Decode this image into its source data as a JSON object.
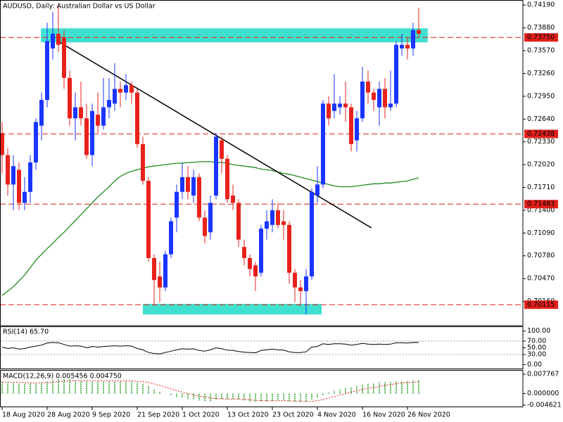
{
  "chart_data": [
    {
      "type": "candlestick",
      "title": "AUDUSD, Daily:  Australian Dollar vs US Dollar",
      "open": [
        0.7245,
        0.7215,
        0.7175,
        0.7195,
        0.715,
        0.7165,
        0.7205,
        0.7255,
        0.729,
        0.736,
        0.738,
        0.7375,
        0.732,
        0.7265,
        0.728,
        0.7265,
        0.7215,
        0.727,
        0.7255,
        0.728,
        0.7285,
        0.7305,
        0.73,
        0.731,
        0.73,
        0.723,
        0.718,
        0.7075,
        0.705,
        0.7035,
        0.708,
        0.713,
        0.7165,
        0.7185,
        0.716,
        0.7185,
        0.713,
        0.711,
        0.716,
        0.7235,
        0.721,
        0.716,
        0.715,
        0.709,
        0.7075,
        0.7065,
        0.7055,
        0.7115,
        0.712,
        0.714,
        0.7125,
        0.712,
        0.7055,
        0.7035,
        0.703,
        0.705,
        0.716,
        0.7175,
        0.7285,
        0.7275,
        0.728,
        0.7285,
        0.728,
        0.7235,
        0.7265,
        0.7315,
        0.73,
        0.728,
        0.7305,
        0.728,
        0.7285,
        0.736,
        0.7365,
        0.736,
        0.7385
      ],
      "high": [
        0.726,
        0.7225,
        0.7215,
        0.7205,
        0.7185,
        0.7215,
        0.7265,
        0.73,
        0.7395,
        0.741,
        0.742,
        0.7385,
        0.733,
        0.73,
        0.7315,
        0.7285,
        0.7285,
        0.73,
        0.732,
        0.732,
        0.734,
        0.7315,
        0.7325,
        0.7315,
        0.7305,
        0.724,
        0.7185,
        0.708,
        0.707,
        0.7085,
        0.713,
        0.7175,
        0.7205,
        0.72,
        0.7195,
        0.719,
        0.714,
        0.716,
        0.7245,
        0.724,
        0.7215,
        0.7175,
        0.7155,
        0.71,
        0.708,
        0.707,
        0.712,
        0.714,
        0.7155,
        0.715,
        0.714,
        0.7125,
        0.706,
        0.7045,
        0.706,
        0.717,
        0.72,
        0.729,
        0.7295,
        0.7325,
        0.7295,
        0.7315,
        0.7285,
        0.7275,
        0.7335,
        0.733,
        0.7305,
        0.7315,
        0.732,
        0.733,
        0.737,
        0.738,
        0.7375,
        0.7395,
        0.7415
      ],
      "low": [
        0.719,
        0.716,
        0.714,
        0.714,
        0.714,
        0.715,
        0.7195,
        0.7235,
        0.728,
        0.7345,
        0.7355,
        0.7305,
        0.7255,
        0.7235,
        0.7255,
        0.721,
        0.72,
        0.7245,
        0.725,
        0.7265,
        0.7275,
        0.728,
        0.729,
        0.7285,
        0.7225,
        0.7175,
        0.707,
        0.701,
        0.7015,
        0.703,
        0.7075,
        0.711,
        0.7155,
        0.7155,
        0.715,
        0.7125,
        0.7095,
        0.71,
        0.7155,
        0.719,
        0.715,
        0.714,
        0.709,
        0.7065,
        0.705,
        0.703,
        0.705,
        0.71,
        0.711,
        0.7115,
        0.71,
        0.704,
        0.7015,
        0.701,
        0.6998,
        0.7045,
        0.715,
        0.717,
        0.7255,
        0.7265,
        0.727,
        0.726,
        0.722,
        0.722,
        0.726,
        0.7285,
        0.7275,
        0.7255,
        0.7265,
        0.7275,
        0.728,
        0.735,
        0.7345,
        0.735,
        0.7375
      ],
      "close": [
        0.7215,
        0.7175,
        0.72,
        0.715,
        0.7165,
        0.7205,
        0.726,
        0.729,
        0.737,
        0.738,
        0.7365,
        0.732,
        0.7265,
        0.728,
        0.7265,
        0.7215,
        0.7275,
        0.7255,
        0.728,
        0.729,
        0.7305,
        0.73,
        0.731,
        0.73,
        0.723,
        0.718,
        0.7075,
        0.7045,
        0.7035,
        0.708,
        0.7125,
        0.7165,
        0.7185,
        0.7165,
        0.7185,
        0.713,
        0.7105,
        0.715,
        0.724,
        0.721,
        0.7155,
        0.715,
        0.71,
        0.7075,
        0.706,
        0.705,
        0.7115,
        0.7125,
        0.714,
        0.712,
        0.712,
        0.7055,
        0.7035,
        0.703,
        0.705,
        0.7165,
        0.7175,
        0.7285,
        0.7265,
        0.7285,
        0.7285,
        0.728,
        0.723,
        0.7265,
        0.7315,
        0.73,
        0.729,
        0.7305,
        0.728,
        0.7285,
        0.7365,
        0.7365,
        0.736,
        0.7385,
        0.738
      ],
      "up_color": "#1a35ff",
      "down_color": "#e8221b",
      "ylim": [
        0.6984,
        0.7424
      ],
      "yticks": [
        {
          "value": 0.7419,
          "label": "0.74190"
        },
        {
          "value": 0.7388,
          "label": "0.73880"
        },
        {
          "value": 0.7357,
          "label": "0.73570"
        },
        {
          "value": 0.7326,
          "label": "0.73260"
        },
        {
          "value": 0.7295,
          "label": "0.72950"
        },
        {
          "value": 0.7264,
          "label": "0.72640"
        },
        {
          "value": 0.7233,
          "label": "0.72330"
        },
        {
          "value": 0.7202,
          "label": "0.72020"
        },
        {
          "value": 0.7171,
          "label": "0.71710"
        },
        {
          "value": 0.714,
          "label": "0.71400"
        },
        {
          "value": 0.7109,
          "label": "0.71090"
        },
        {
          "value": 0.7078,
          "label": "0.70780"
        },
        {
          "value": 0.7047,
          "label": "0.70470"
        },
        {
          "value": 0.7016,
          "label": "0.70160"
        }
      ],
      "xticks": [
        {
          "value": 0,
          "label": "18 Aug 2020"
        },
        {
          "value": 8,
          "label": "28 Aug 2020"
        },
        {
          "value": 16,
          "label": "9 Sep 2020"
        },
        {
          "value": 24,
          "label": "21 Sep 2020"
        },
        {
          "value": 32,
          "label": "1 Oct 2020"
        },
        {
          "value": 40,
          "label": "13 Oct 2020"
        },
        {
          "value": 48,
          "label": "23 Oct 2020"
        },
        {
          "value": 56,
          "label": "4 Nov 2020"
        },
        {
          "value": 64,
          "label": "16 Nov 2020"
        },
        {
          "value": 72,
          "label": "26 Nov 2020"
        }
      ],
      "ma": {
        "color": "#1e8c1e",
        "values": [
          0.7024,
          0.703,
          0.7036,
          0.7044,
          0.7052,
          0.7062,
          0.7072,
          0.708,
          0.7088,
          0.7095,
          0.7103,
          0.711,
          0.7118,
          0.7126,
          0.7134,
          0.7142,
          0.715,
          0.7158,
          0.7165,
          0.7172,
          0.718,
          0.7186,
          0.719,
          0.7193,
          0.7195,
          0.7197,
          0.7199,
          0.72,
          0.7201,
          0.7202,
          0.7203,
          0.7204,
          0.7204,
          0.7205,
          0.7205,
          0.7206,
          0.7206,
          0.7206,
          0.7205,
          0.7205,
          0.7204,
          0.7202,
          0.7201,
          0.72,
          0.7199,
          0.7198,
          0.7196,
          0.7195,
          0.7194,
          0.7192,
          0.719,
          0.7189,
          0.7187,
          0.7185,
          0.7183,
          0.7181,
          0.7179,
          0.7177,
          0.7175,
          0.7173,
          0.7172,
          0.7172,
          0.7172,
          0.7173,
          0.7174,
          0.7175,
          0.7176,
          0.7176,
          0.7177,
          0.7177,
          0.7178,
          0.7179,
          0.718,
          0.7182,
          0.7184
        ]
      },
      "levels": [
        {
          "value": 0.7375,
          "label": "0.73750"
        },
        {
          "value": 0.72438,
          "label": "0.72438"
        },
        {
          "value": 0.71483,
          "label": "0.71483"
        },
        {
          "value": 0.70115,
          "label": "0.70115"
        }
      ],
      "level_color": "#e0201b",
      "zones": [
        {
          "x": [
            6.9,
            75.6
          ],
          "y": [
            0.73683,
            0.73874
          ]
        },
        {
          "x": [
            25,
            56.75
          ],
          "y": [
            0.69982,
            0.70126
          ]
        }
      ],
      "zone_color": "#40e0d0",
      "trendline": {
        "x": [
          9.9,
          65.6
        ],
        "y": [
          0.737,
          0.7116
        ],
        "color": "#000000"
      }
    },
    {
      "type": "line",
      "title": "RSI(14) 65.70",
      "values": [
        52,
        48,
        50,
        46,
        48,
        52,
        55,
        58,
        64,
        66,
        65,
        60,
        55,
        56,
        55,
        50,
        54,
        52,
        54,
        55,
        56,
        55,
        56,
        55,
        48,
        44,
        36,
        33,
        32,
        36,
        40,
        44,
        47,
        46,
        47,
        42,
        40,
        44,
        50,
        47,
        43,
        42,
        39,
        37,
        36,
        35,
        42,
        44,
        46,
        44,
        43,
        38,
        36,
        36,
        38,
        52,
        54,
        62,
        60,
        62,
        62,
        61,
        58,
        60,
        63,
        61,
        60,
        61,
        60,
        61,
        65,
        65,
        64,
        66,
        65.7
      ],
      "color": "#000000",
      "ylim": [
        -12,
        112
      ],
      "yticks": [
        {
          "value": 100,
          "label": "100.00"
        },
        {
          "value": 70,
          "label": "70.00"
        },
        {
          "value": 50,
          "label": "50.00"
        },
        {
          "value": 30,
          "label": "30.00"
        },
        {
          "value": 0,
          "label": "0.00"
        }
      ],
      "levels": [
        70,
        30
      ],
      "level_color": "#a0a0a0"
    },
    {
      "type": "bar",
      "title": "MACD(12,26,9) 0.005456 0.004750",
      "values": [
        0.0048,
        0.0046,
        0.0044,
        0.0042,
        0.004,
        0.004,
        0.0042,
        0.0045,
        0.005,
        0.0055,
        0.0058,
        0.0058,
        0.0056,
        0.0054,
        0.0053,
        0.005,
        0.005,
        0.0049,
        0.0049,
        0.005,
        0.0051,
        0.0051,
        0.0051,
        0.005,
        0.0046,
        0.004,
        0.003,
        0.0018,
        0.0008,
        0.0,
        -0.0008,
        -0.0014,
        -0.0018,
        -0.0022,
        -0.0024,
        -0.0028,
        -0.0032,
        -0.0032,
        -0.0026,
        -0.0022,
        -0.0022,
        -0.0022,
        -0.0024,
        -0.0028,
        -0.0032,
        -0.0035,
        -0.0034,
        -0.0032,
        -0.003,
        -0.0028,
        -0.0027,
        -0.003,
        -0.0033,
        -0.0035,
        -0.0034,
        -0.0026,
        -0.0018,
        -0.0006,
        0.0004,
        0.0012,
        0.0018,
        0.0024,
        0.0026,
        0.003,
        0.0036,
        0.004,
        0.0043,
        0.0046,
        0.0046,
        0.0047,
        0.0048,
        0.005,
        0.0052,
        0.0054,
        0.005456
      ],
      "color": "#22a022",
      "signal": {
        "color": "#e0201b",
        "values": [
          0.0046,
          0.0046,
          0.0045,
          0.0045,
          0.0044,
          0.0043,
          0.0043,
          0.0043,
          0.0044,
          0.0046,
          0.0048,
          0.005,
          0.0051,
          0.0052,
          0.0052,
          0.0052,
          0.0052,
          0.0051,
          0.0051,
          0.0051,
          0.0051,
          0.0051,
          0.0051,
          0.0051,
          0.005,
          0.0048,
          0.0045,
          0.0039,
          0.0033,
          0.0026,
          0.0019,
          0.0012,
          0.0006,
          0.0,
          -0.0005,
          -0.001,
          -0.0014,
          -0.0018,
          -0.002,
          -0.0021,
          -0.0022,
          -0.0022,
          -0.0022,
          -0.0023,
          -0.0025,
          -0.0027,
          -0.0028,
          -0.0029,
          -0.0029,
          -0.0029,
          -0.0028,
          -0.0029,
          -0.003,
          -0.0031,
          -0.0032,
          -0.0031,
          -0.0028,
          -0.0024,
          -0.0018,
          -0.0012,
          -0.0006,
          0.0,
          0.0006,
          0.0011,
          0.0016,
          0.0021,
          0.0025,
          0.0029,
          0.0033,
          0.0036,
          0.004,
          0.0042,
          0.0044,
          0.0046,
          0.00475
        ]
      },
      "ylim": [
        -0.0052,
        0.0092
      ],
      "yticks": [
        0.007767,
        {
          "value": 0,
          "label": "0.000000"
        },
        -0.004621
      ]
    }
  ]
}
